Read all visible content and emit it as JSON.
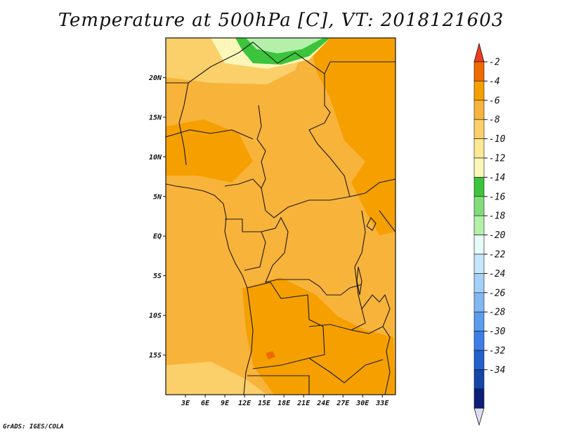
{
  "title": "Temperature at 500hPa [C], VT: 2018121603",
  "footer": "GrADS: IGES/COLA",
  "map": {
    "lon_range": [
      0,
      35
    ],
    "lat_range": [
      -20,
      25
    ],
    "lat_ticks": [
      "20N",
      "15N",
      "10N",
      "5N",
      "EQ",
      "5S",
      "10S",
      "15S"
    ],
    "lon_ticks": [
      "3E",
      "6E",
      "9E",
      "12E",
      "15E",
      "18E",
      "21E",
      "24E",
      "27E",
      "30E",
      "33E"
    ],
    "fill_colors": {
      "minus4_to_minus2": "#f5a000",
      "minus6_to_minus4": "#f8b33a",
      "minus8_to_minus6": "#fbd06a",
      "minus10_to_minus8": "#fde895",
      "minus12_to_minus10": "#fbf7b8",
      "minus14_to_minus12": "#3cc43c",
      "minus16_to_minus14": "#82dc78",
      "minus18_to_minus16": "#b4f0aa"
    }
  },
  "colorbar": {
    "levels": [
      "-2",
      "-4",
      "-6",
      "-8",
      "-10",
      "-12",
      "-14",
      "-16",
      "-18",
      "-20",
      "-22",
      "-24",
      "-26",
      "-28",
      "-30",
      "-32",
      "-34"
    ],
    "colors": [
      "#f06a00",
      "#f5a000",
      "#f8b33a",
      "#fbd06a",
      "#fde895",
      "#fbf7b8",
      "#3cc43c",
      "#82dc78",
      "#b4f0aa",
      "#e6faf8",
      "#c8e6fa",
      "#a6d0f8",
      "#82b8f2",
      "#5c9ced",
      "#3c7ee6",
      "#2260cc",
      "#1446a8",
      "#0c1e78"
    ],
    "top_color": "#f03c1e",
    "bottom_color": "#dcdcf5"
  }
}
